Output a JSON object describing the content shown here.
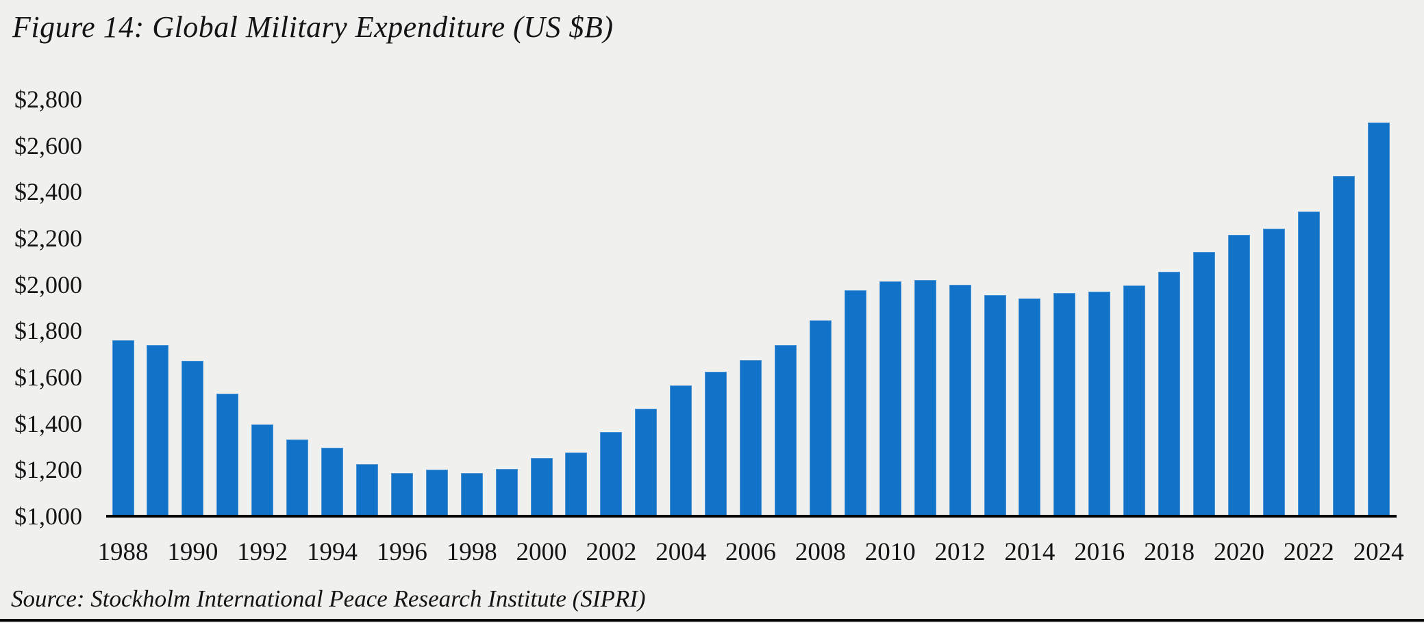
{
  "figure": {
    "title": "Figure 14: Global Military Expenditure (US $B)",
    "source": "Source: Stockholm International Peace Research Institute (SIPRI)"
  },
  "colors": {
    "bar": "#1172c8",
    "background": "#f0f0ee",
    "axis": "#000000",
    "text": "#141414"
  },
  "chart_data": {
    "type": "bar",
    "title": "Figure 14: Global Military Expenditure (US $B)",
    "xlabel": "",
    "ylabel": "US $B",
    "ylim": [
      1000,
      2800
    ],
    "ytick_step": 200,
    "grid": false,
    "legend": false,
    "ytick_labels": [
      "$2,800",
      "$2,600",
      "$2,400",
      "$2,200",
      "$2,000",
      "$1,800",
      "$1,600",
      "$1,400",
      "$1,200",
      "$1,000"
    ],
    "xtick_labels": [
      "1988",
      "1990",
      "1992",
      "1994",
      "1996",
      "1998",
      "2000",
      "2002",
      "2004",
      "2006",
      "2008",
      "2010",
      "2012",
      "2014",
      "2016",
      "2018",
      "2020",
      "2022",
      "2024"
    ],
    "categories": [
      1988,
      1989,
      1990,
      1991,
      1992,
      1993,
      1994,
      1995,
      1996,
      1997,
      1998,
      1999,
      2000,
      2001,
      2002,
      2003,
      2004,
      2005,
      2006,
      2007,
      2008,
      2009,
      2010,
      2011,
      2012,
      2013,
      2014,
      2015,
      2016,
      2017,
      2018,
      2019,
      2020,
      2021,
      2022,
      2023,
      2024
    ],
    "values": [
      1760,
      1740,
      1670,
      1530,
      1395,
      1330,
      1295,
      1225,
      1185,
      1200,
      1185,
      1205,
      1250,
      1275,
      1365,
      1465,
      1565,
      1625,
      1675,
      1740,
      1845,
      1975,
      2015,
      2020,
      2000,
      1955,
      1940,
      1965,
      1970,
      1995,
      2055,
      2140,
      2215,
      2240,
      2315,
      2470,
      2700
    ]
  }
}
